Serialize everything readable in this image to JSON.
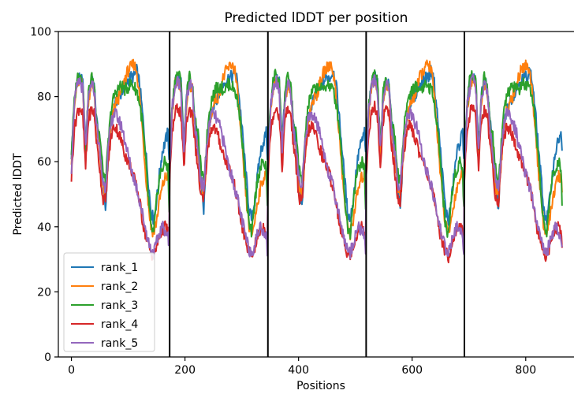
{
  "chart_data": {
    "type": "line",
    "title": "Predicted lDDT per position",
    "xlabel": "Positions",
    "ylabel": "Predicted lDDT",
    "xlim": [
      -23,
      885
    ],
    "ylim": [
      0,
      100
    ],
    "x_ticks": [
      0,
      200,
      400,
      600,
      800
    ],
    "y_ticks": [
      0,
      20,
      40,
      60,
      80,
      100
    ],
    "grid": false,
    "legend_position": "lower-left",
    "chain_boundaries": [
      173,
      346,
      519,
      692
    ],
    "chain_length": 173,
    "num_chains": 5,
    "keypoint_x": [
      0,
      5,
      10,
      15,
      20,
      25,
      30,
      35,
      40,
      45,
      50,
      55,
      60,
      65,
      70,
      75,
      80,
      85,
      90,
      95,
      100,
      105,
      110,
      115,
      120,
      125,
      130,
      135,
      140,
      145,
      150,
      155,
      160,
      165,
      170,
      172
    ],
    "series": [
      {
        "name": "rank_1",
        "color": "#1f77b4",
        "values": [
          62,
          77,
          85,
          86,
          84,
          65,
          80,
          85,
          83,
          72,
          66,
          55,
          45,
          62,
          72,
          76,
          79,
          80,
          82,
          84,
          85,
          86,
          86,
          88,
          84,
          75,
          65,
          55,
          45,
          42,
          48,
          56,
          63,
          66,
          69,
          62
        ]
      },
      {
        "name": "rank_2",
        "color": "#ff7f0e",
        "values": [
          61,
          76,
          84,
          85,
          83,
          62,
          79,
          84,
          82,
          70,
          63,
          52,
          50,
          60,
          71,
          76,
          79,
          80,
          83,
          86,
          88,
          89,
          90,
          88,
          80,
          70,
          58,
          48,
          40,
          38,
          42,
          48,
          52,
          55,
          56,
          50
        ]
      },
      {
        "name": "rank_3",
        "color": "#2ca02c",
        "values": [
          63,
          78,
          86,
          87,
          85,
          64,
          81,
          86,
          84,
          72,
          68,
          58,
          53,
          66,
          76,
          80,
          82,
          83,
          83,
          82,
          83,
          84,
          83,
          82,
          78,
          72,
          62,
          50,
          40,
          38,
          48,
          55,
          58,
          60,
          58,
          45
        ]
      },
      {
        "name": "rank_4",
        "color": "#d62728",
        "values": [
          55,
          70,
          75,
          77,
          74,
          58,
          73,
          76,
          75,
          65,
          58,
          49,
          48,
          60,
          68,
          71,
          70,
          68,
          65,
          62,
          60,
          58,
          55,
          52,
          48,
          42,
          38,
          35,
          32,
          31,
          34,
          37,
          39,
          40,
          39,
          35
        ]
      },
      {
        "name": "rank_5",
        "color": "#9467bd",
        "values": [
          58,
          78,
          83,
          85,
          82,
          64,
          79,
          84,
          82,
          70,
          63,
          54,
          52,
          64,
          72,
          75,
          74,
          72,
          70,
          66,
          62,
          58,
          55,
          52,
          48,
          44,
          40,
          36,
          33,
          32,
          35,
          38,
          40,
          39,
          37,
          33
        ]
      }
    ]
  }
}
